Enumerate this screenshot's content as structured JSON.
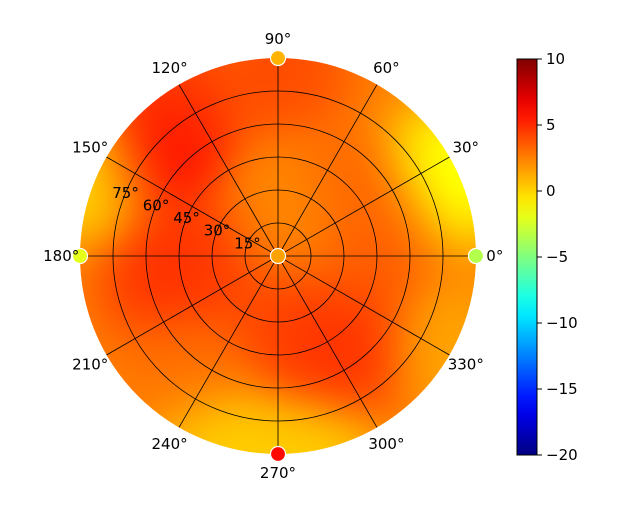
{
  "chart_data": {
    "type": "heatmap",
    "projection": "polar",
    "title": "",
    "angular_tick_labels": [
      "0°",
      "30°",
      "60°",
      "90°",
      "120°",
      "150°",
      "180°",
      "210°",
      "240°",
      "270°",
      "300°",
      "330°"
    ],
    "angular_ticks_deg": [
      0,
      30,
      60,
      90,
      120,
      150,
      180,
      210,
      240,
      270,
      300,
      330
    ],
    "radial_tick_labels": [
      "15°",
      "30°",
      "45°",
      "60°",
      "75°"
    ],
    "radial_ticks": [
      15,
      30,
      45,
      60,
      75
    ],
    "rlim": [
      0,
      90
    ],
    "radial_label_angle_deg": 157.5,
    "grid": true,
    "colorbar": {
      "colormap": "jet",
      "vmin": -20,
      "vmax": 10,
      "ticks": [
        10,
        5,
        0,
        -5,
        -10,
        -15,
        -20
      ],
      "tick_labels": [
        "10",
        "5",
        "0",
        "−5",
        "−10",
        "−15",
        "−20"
      ],
      "location": "right"
    },
    "field_hotspots": [
      {
        "az": 140,
        "el": 72,
        "value": 7.5
      },
      {
        "az": 125,
        "el": 82,
        "value": 5
      },
      {
        "az": 180,
        "el": 30,
        "value": 5
      },
      {
        "az": 190,
        "el": 50,
        "value": 5.5
      },
      {
        "az": 295,
        "el": 40,
        "value": 5
      },
      {
        "az": 305,
        "el": 55,
        "value": 5.5
      },
      {
        "az": 20,
        "el": 50,
        "value": 3.5
      },
      {
        "az": 45,
        "el": 35,
        "value": 4
      },
      {
        "az": 90,
        "el": 85,
        "value": 4.5
      },
      {
        "az": 270,
        "el": 25,
        "value": 4.5
      },
      {
        "az": 230,
        "el": 60,
        "value": 3
      },
      {
        "az": 350,
        "el": 35,
        "value": 4
      },
      {
        "az": 95,
        "el": 15,
        "value": 2.5
      },
      {
        "az": 25,
        "el": 85,
        "value": -3
      },
      {
        "az": 155,
        "el": 90,
        "value": -1.5
      },
      {
        "az": 255,
        "el": 90,
        "value": -0.5
      },
      {
        "az": 280,
        "el": 90,
        "value": -0.5
      },
      {
        "az": 60,
        "el": 20,
        "value": 1
      },
      {
        "az": 330,
        "el": 85,
        "value": 1
      }
    ],
    "field_base_value": 2.5,
    "point_markers": [
      {
        "az": 0,
        "el": 0,
        "value": 1.5
      },
      {
        "az": 0,
        "el": 90,
        "value": -20
      },
      {
        "az": 90,
        "el": 90,
        "value": 1
      },
      {
        "az": 180,
        "el": 90,
        "value": -2
      },
      {
        "az": 270,
        "el": 90,
        "value": 6
      },
      {
        "az": 0,
        "el": 90,
        "value": -3.5
      }
    ]
  },
  "colors": {
    "grid": "#000000",
    "marker_edge": "#ffffff",
    "colorbar_border": "#000000"
  }
}
